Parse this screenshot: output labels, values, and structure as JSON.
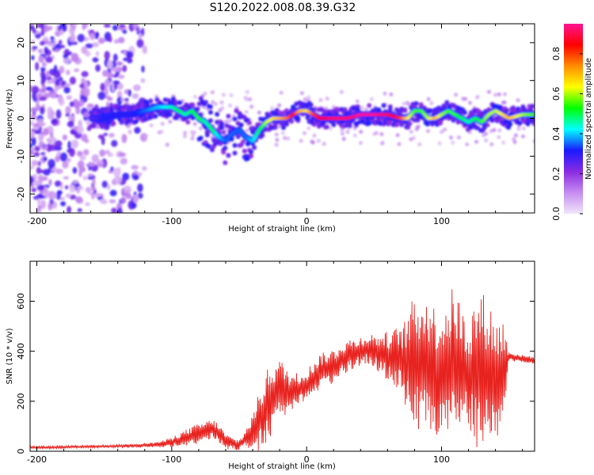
{
  "title": "S120.2022.008.08.39.G32",
  "chart_data": [
    {
      "type": "heatmap",
      "title": "S120.2022.008.08.39.G32",
      "xlabel": "Height of straight line (km)",
      "ylabel": "Frequency (Hz)",
      "xlim": [
        -205,
        169
      ],
      "ylim": [
        -25,
        25
      ],
      "x_ticks": [
        -200,
        -100,
        0,
        100
      ],
      "y_ticks": [
        -20,
        -10,
        0,
        10,
        20
      ],
      "x_tick_labels": [
        "-200",
        "-100",
        "0",
        "100"
      ],
      "y_tick_labels": [
        "-20",
        "-10",
        "0",
        "10",
        "20"
      ],
      "colorbar": {
        "label": "Normalized spectral amplitude",
        "range": [
          0,
          0.95
        ],
        "ticks": [
          0.0,
          0.2,
          0.4,
          0.6,
          0.8
        ],
        "tick_labels": [
          "0.0",
          "0.2",
          "0.4",
          "0.6",
          "0.8"
        ],
        "colors": [
          "#f0e6fb",
          "#c68cf0",
          "#8a2be2",
          "#1a1aff",
          "#00ffff",
          "#00ff00",
          "#ffff00",
          "#ff8c00",
          "#ff0000",
          "#ff1493"
        ]
      },
      "ridge": {
        "name": "dominant frequency",
        "x": [
          -160,
          -150,
          -140,
          -130,
          -120,
          -110,
          -100,
          -95,
          -90,
          -85,
          -80,
          -75,
          -70,
          -65,
          -60,
          -55,
          -50,
          -45,
          -40,
          -35,
          -30,
          -25,
          -20,
          -15,
          -10,
          -5,
          0,
          5,
          10,
          20,
          30,
          40,
          50,
          60,
          70,
          75,
          80,
          85,
          90,
          95,
          100,
          105,
          110,
          115,
          120,
          125,
          130,
          135,
          140,
          145,
          150,
          160,
          169
        ],
        "y": [
          0,
          0,
          1,
          1,
          2,
          3,
          3,
          2,
          1,
          2,
          0,
          -1,
          -3,
          -5,
          -6,
          -4,
          -3,
          -5,
          -6,
          -3,
          -1,
          0,
          0,
          0,
          1,
          2,
          2,
          1,
          0,
          0,
          0,
          1,
          1,
          1,
          0,
          0,
          2,
          2,
          0,
          0,
          1,
          2,
          1,
          0,
          -1,
          0,
          -1,
          1,
          2,
          1,
          0,
          1,
          1
        ],
        "amplitude": [
          0.25,
          0.3,
          0.3,
          0.3,
          0.35,
          0.4,
          0.45,
          0.5,
          0.45,
          0.5,
          0.55,
          0.45,
          0.5,
          0.4,
          0.35,
          0.35,
          0.35,
          0.35,
          0.4,
          0.5,
          0.6,
          0.65,
          0.7,
          0.75,
          0.85,
          0.7,
          0.65,
          0.8,
          0.85,
          0.9,
          0.9,
          0.95,
          0.95,
          0.9,
          0.8,
          0.65,
          0.55,
          0.55,
          0.6,
          0.7,
          0.6,
          0.55,
          0.55,
          0.5,
          0.45,
          0.5,
          0.55,
          0.6,
          0.6,
          0.65,
          0.7,
          0.6,
          0.55
        ]
      },
      "noise_region_x": [
        -205,
        -120
      ]
    },
    {
      "type": "line",
      "xlabel": "Height of straight line (km)",
      "ylabel": "SNR (10 * v/v)",
      "xlim": [
        -205,
        169
      ],
      "ylim": [
        0,
        760
      ],
      "x_ticks": [
        -200,
        -100,
        0,
        100
      ],
      "y_ticks": [
        0,
        200,
        400,
        600
      ],
      "x_tick_labels": [
        "-200",
        "-100",
        "0",
        "100"
      ],
      "y_tick_labels": [
        "0",
        "200",
        "400",
        "600"
      ],
      "color": "#e8231f",
      "series": [
        {
          "x": [
            -205,
            -190,
            -175,
            -160,
            -145,
            -130,
            -115,
            -105,
            -95,
            -85,
            -75,
            -70,
            -65,
            -60,
            -55,
            -50,
            -45,
            -40,
            -35,
            -30,
            -25,
            -20,
            -15,
            -10,
            -5,
            0,
            5,
            10,
            15,
            20,
            25,
            30,
            35,
            40,
            45,
            50,
            55,
            60,
            65,
            70,
            75,
            80,
            85,
            90,
            95,
            100,
            105,
            110,
            115,
            120,
            125,
            130,
            135,
            140,
            145,
            150,
            160,
            169
          ],
          "values": [
            15,
            15,
            18,
            18,
            20,
            22,
            25,
            30,
            45,
            60,
            80,
            90,
            70,
            40,
            30,
            25,
            50,
            80,
            120,
            170,
            220,
            250,
            240,
            230,
            250,
            260,
            290,
            320,
            330,
            340,
            360,
            380,
            390,
            400,
            410,
            400,
            390,
            380,
            370,
            370,
            340,
            360,
            340,
            350,
            330,
            300,
            330,
            350,
            330,
            300,
            320,
            320,
            310,
            280,
            300,
            380,
            370,
            365
          ],
          "spread": [
            5,
            5,
            5,
            5,
            5,
            8,
            10,
            15,
            25,
            40,
            40,
            40,
            40,
            30,
            25,
            20,
            40,
            70,
            120,
            150,
            150,
            120,
            100,
            80,
            70,
            70,
            70,
            70,
            70,
            70,
            70,
            70,
            60,
            60,
            60,
            70,
            80,
            100,
            120,
            140,
            200,
            280,
            300,
            280,
            250,
            280,
            300,
            320,
            250,
            220,
            300,
            320,
            300,
            250,
            250,
            20,
            15,
            15
          ]
        }
      ]
    }
  ]
}
